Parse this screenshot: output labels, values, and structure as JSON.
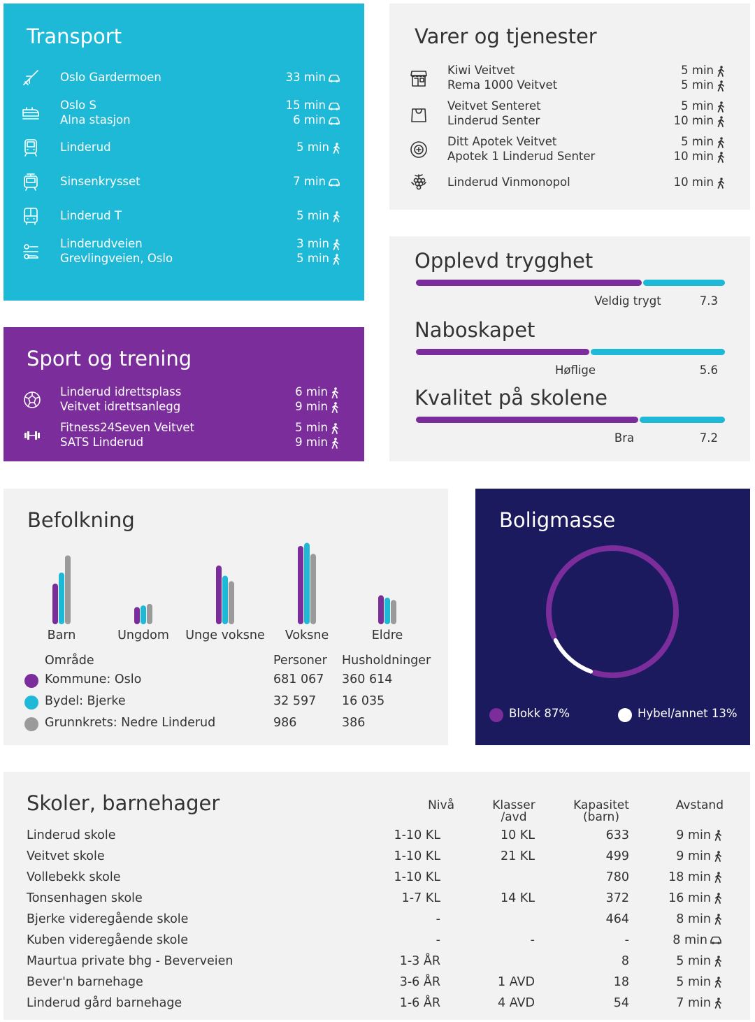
{
  "transport": {
    "title": "Transport",
    "items": [
      {
        "icon": "airplane-icon",
        "names": [
          "Oslo Gardermoen"
        ],
        "times": [
          "33 min"
        ],
        "modes": [
          "car"
        ]
      },
      {
        "icon": "train-icon",
        "names": [
          "Oslo S",
          "Alna stasjon"
        ],
        "times": [
          "15 min",
          "6 min"
        ],
        "modes": [
          "car",
          "car"
        ]
      },
      {
        "icon": "metro-icon",
        "names": [
          "Linderud"
        ],
        "times": [
          "5 min"
        ],
        "modes": [
          "walk"
        ]
      },
      {
        "icon": "tram-icon",
        "names": [
          "Sinsenkrysset"
        ],
        "times": [
          "7 min"
        ],
        "modes": [
          "car"
        ]
      },
      {
        "icon": "bus-icon",
        "names": [
          "Linderud T"
        ],
        "times": [
          "5 min"
        ],
        "modes": [
          "walk"
        ]
      },
      {
        "icon": "bus-stop-icon",
        "names": [
          "Linderudveien",
          "Grevlingveien, Oslo"
        ],
        "times": [
          "3 min",
          "5 min"
        ],
        "modes": [
          "walk",
          "walk"
        ]
      }
    ]
  },
  "sport": {
    "title": "Sport og trening",
    "items": [
      {
        "icon": "football-icon",
        "names": [
          "Linderud idrettsplass",
          "Veitvet idrettsanlegg"
        ],
        "times": [
          "6 min",
          "9 min"
        ],
        "modes": [
          "walk",
          "walk"
        ]
      },
      {
        "icon": "dumbbell-icon",
        "names": [
          "Fitness24Seven Veitvet",
          "SATS Linderud"
        ],
        "times": [
          "5 min",
          "9 min"
        ],
        "modes": [
          "walk",
          "walk"
        ]
      }
    ]
  },
  "varer": {
    "title": "Varer og tjenester",
    "items": [
      {
        "icon": "store-icon",
        "names": [
          "Kiwi Veitvet",
          "Rema 1000 Veitvet"
        ],
        "times": [
          "5 min",
          "5 min"
        ],
        "modes": [
          "walk",
          "walk"
        ]
      },
      {
        "icon": "shopping-bag-icon",
        "names": [
          "Veitvet Senteret",
          "Linderud Senter"
        ],
        "times": [
          "5 min",
          "10 min"
        ],
        "modes": [
          "walk",
          "walk"
        ]
      },
      {
        "icon": "pharmacy-icon",
        "names": [
          "Ditt Apotek Veitvet",
          "Apotek 1 Linderud Senter"
        ],
        "times": [
          "5 min",
          "10 min"
        ],
        "modes": [
          "walk",
          "walk"
        ]
      },
      {
        "icon": "grapes-icon",
        "names": [
          "Linderud Vinmonopol"
        ],
        "times": [
          "10 min"
        ],
        "modes": [
          "walk"
        ]
      }
    ]
  },
  "ratings": [
    {
      "title": "Opplevd trygghet",
      "label": "Veldig trygt",
      "score": "7.3",
      "fraction": 0.73
    },
    {
      "title": "Naboskapet",
      "label": "Høflige",
      "score": "5.6",
      "fraction": 0.56
    },
    {
      "title": "Kvalitet på skolene",
      "label": "Bra",
      "score": "7.2",
      "fraction": 0.72
    }
  ],
  "befolkning": {
    "title": "Befolkning",
    "categories": [
      "Barn",
      "Ungdom",
      "Unge voksne",
      "Voksne",
      "Eldre"
    ],
    "series": [
      {
        "values": [
          0.52,
          0.22,
          0.75,
          1.0,
          0.37
        ]
      },
      {
        "values": [
          0.66,
          0.24,
          0.62,
          1.04,
          0.34
        ]
      },
      {
        "values": [
          0.88,
          0.26,
          0.55,
          0.9,
          0.31
        ]
      }
    ],
    "headers": {
      "area": "Område",
      "persons": "Personer",
      "households": "Husholdninger"
    },
    "rows": [
      {
        "area": "Kommune: Oslo",
        "persons": "681 067",
        "households": "360 614"
      },
      {
        "area": "Bydel: Bjerke",
        "persons": "32 597",
        "households": "16 035"
      },
      {
        "area": "Grunnkrets: Nedre Linderud",
        "persons": "986",
        "households": "386"
      }
    ]
  },
  "boligmasse": {
    "title": "Boligmasse",
    "slices": [
      {
        "label": "Blokk 87%",
        "value": 87
      },
      {
        "label": "Hybel/annet 13%",
        "value": 13
      }
    ]
  },
  "skoler": {
    "title": "Skoler, barnehager",
    "headers": {
      "niva": "Nivå",
      "klasser": [
        "Klasser",
        "/avd"
      ],
      "kapasitet": [
        "Kapasitet",
        "(barn)"
      ],
      "avstand": "Avstand"
    },
    "rows": [
      {
        "name": "Linderud skole",
        "niva": "1-10 KL",
        "klasser": "10 KL",
        "kapasitet": "633",
        "avstand": "9 min",
        "mode": "walk"
      },
      {
        "name": "Veitvet skole",
        "niva": "1-10 KL",
        "klasser": "21 KL",
        "kapasitet": "499",
        "avstand": "9 min",
        "mode": "walk"
      },
      {
        "name": "Vollebekk skole",
        "niva": "1-10 KL",
        "klasser": "",
        "kapasitet": "780",
        "avstand": "18 min",
        "mode": "walk"
      },
      {
        "name": "Tonsenhagen skole",
        "niva": "1-7 KL",
        "klasser": "14 KL",
        "kapasitet": "372",
        "avstand": "16 min",
        "mode": "walk"
      },
      {
        "name": "Bjerke videregående skole",
        "niva": "-",
        "klasser": "",
        "kapasitet": "464",
        "avstand": "8 min",
        "mode": "walk"
      },
      {
        "name": "Kuben videregående skole",
        "niva": "-",
        "klasser": "-",
        "kapasitet": "-",
        "avstand": "8 min",
        "mode": "car"
      },
      {
        "name": "Maurtua private bhg -  Beverveien",
        "niva": "1-3 ÅR",
        "klasser": "",
        "kapasitet": "8",
        "avstand": "5 min",
        "mode": "walk"
      },
      {
        "name": "Bever'n barnehage",
        "niva": "3-6 ÅR",
        "klasser": "1 AVD",
        "kapasitet": "18",
        "avstand": "5 min",
        "mode": "walk"
      },
      {
        "name": "Linderud gård barnehage",
        "niva": "1-6 ÅR",
        "klasser": "4 AVD",
        "kapasitet": "54",
        "avstand": "7 min",
        "mode": "walk"
      }
    ]
  },
  "colors": {
    "cyan": "#1db9d6",
    "purple": "#7b2d9b",
    "navy": "#1c1a5e",
    "grey": "#9a9a9a",
    "panel": "#f2f2f2"
  }
}
